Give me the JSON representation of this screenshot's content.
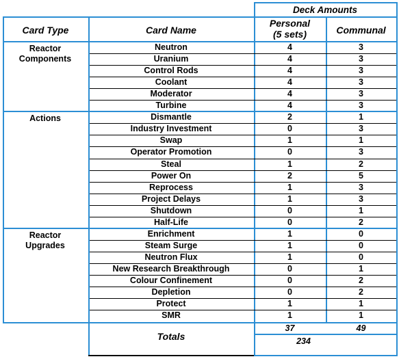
{
  "header": {
    "deck_amounts": "Deck Amounts",
    "card_type": "Card Type",
    "card_name": "Card Name",
    "personal_line1": "Personal",
    "personal_line2": "(5 sets)",
    "communal": "Communal"
  },
  "groups": [
    {
      "type_line1": "Reactor",
      "type_line2": "Components",
      "rows": [
        {
          "name": "Neutron",
          "personal": "4",
          "communal": "3"
        },
        {
          "name": "Uranium",
          "personal": "4",
          "communal": "3"
        },
        {
          "name": "Control Rods",
          "personal": "4",
          "communal": "3"
        },
        {
          "name": "Coolant",
          "personal": "4",
          "communal": "3"
        },
        {
          "name": "Moderator",
          "personal": "4",
          "communal": "3"
        },
        {
          "name": "Turbine",
          "personal": "4",
          "communal": "3"
        }
      ]
    },
    {
      "type_line1": "Actions",
      "type_line2": "",
      "rows": [
        {
          "name": "Dismantle",
          "personal": "2",
          "communal": "1"
        },
        {
          "name": "Industry Investment",
          "personal": "0",
          "communal": "3"
        },
        {
          "name": "Swap",
          "personal": "1",
          "communal": "1"
        },
        {
          "name": "Operator Promotion",
          "personal": "0",
          "communal": "3"
        },
        {
          "name": "Steal",
          "personal": "1",
          "communal": "2"
        },
        {
          "name": "Power On",
          "personal": "2",
          "communal": "5"
        },
        {
          "name": "Reprocess",
          "personal": "1",
          "communal": "3"
        },
        {
          "name": "Project Delays",
          "personal": "1",
          "communal": "3"
        },
        {
          "name": "Shutdown",
          "personal": "0",
          "communal": "1"
        },
        {
          "name": "Half-Life",
          "personal": "0",
          "communal": "2"
        }
      ]
    },
    {
      "type_line1": "Reactor",
      "type_line2": "Upgrades",
      "rows": [
        {
          "name": "Enrichment",
          "personal": "1",
          "communal": "0"
        },
        {
          "name": "Steam Surge",
          "personal": "1",
          "communal": "0"
        },
        {
          "name": "Neutron Flux",
          "personal": "1",
          "communal": "0"
        },
        {
          "name": "New Research Breakthrough",
          "personal": "0",
          "communal": "1"
        },
        {
          "name": "Colour Confinement",
          "personal": "0",
          "communal": "2"
        },
        {
          "name": "Depletion",
          "personal": "0",
          "communal": "2"
        },
        {
          "name": "Protect",
          "personal": "1",
          "communal": "1"
        },
        {
          "name": "SMR",
          "personal": "1",
          "communal": "1"
        }
      ]
    }
  ],
  "totals": {
    "label": "Totals",
    "personal": "37",
    "communal": "49",
    "grand": "234"
  }
}
